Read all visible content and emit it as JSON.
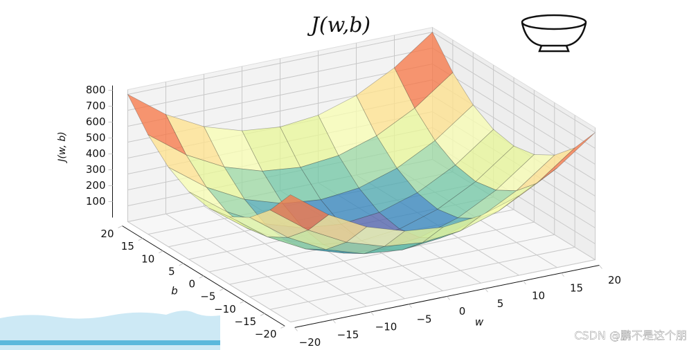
{
  "chart_data": {
    "type": "surface",
    "title": "J(w,b)",
    "xlabel": "w",
    "ylabel": "b",
    "zlabel": "J(w, b)",
    "x": [
      -20,
      -15,
      -10,
      -5,
      0,
      5,
      10,
      15,
      20
    ],
    "y": [
      -20,
      -15,
      -10,
      -5,
      0,
      5,
      10,
      15,
      20
    ],
    "z": [
      [
        800,
        625,
        500,
        425,
        400,
        425,
        500,
        625,
        800
      ],
      [
        625,
        450,
        325,
        250,
        225,
        250,
        325,
        450,
        625
      ],
      [
        500,
        325,
        200,
        125,
        100,
        125,
        200,
        325,
        500
      ],
      [
        425,
        250,
        125,
        50,
        25,
        50,
        125,
        250,
        425
      ],
      [
        400,
        225,
        100,
        25,
        0,
        25,
        100,
        225,
        400
      ],
      [
        425,
        250,
        125,
        50,
        25,
        50,
        125,
        250,
        425
      ],
      [
        500,
        325,
        200,
        125,
        100,
        125,
        200,
        325,
        500
      ],
      [
        625,
        450,
        325,
        250,
        225,
        250,
        325,
        450,
        625
      ],
      [
        800,
        625,
        500,
        425,
        400,
        425,
        500,
        625,
        800
      ]
    ],
    "xlim": [
      -20,
      20
    ],
    "ylim": [
      -20,
      20
    ],
    "zlim": [
      0,
      830
    ],
    "xticks": [
      {
        "value": -20,
        "label": "−20"
      },
      {
        "value": -15,
        "label": "−15"
      },
      {
        "value": -10,
        "label": "−10"
      },
      {
        "value": -5,
        "label": "−5"
      },
      0,
      5,
      10,
      15,
      20
    ],
    "yticks": [
      {
        "value": -20,
        "label": "−20"
      },
      {
        "value": -15,
        "label": "−15"
      },
      {
        "value": -10,
        "label": "−10"
      },
      {
        "value": -5,
        "label": "−5"
      },
      0,
      5,
      10,
      15,
      20
    ],
    "zticks": [
      100,
      200,
      300,
      400,
      500,
      600,
      700,
      800
    ],
    "colormap": "Spectral_r",
    "grid": true
  },
  "watermark": "CSDN @鹏不是这个朋"
}
